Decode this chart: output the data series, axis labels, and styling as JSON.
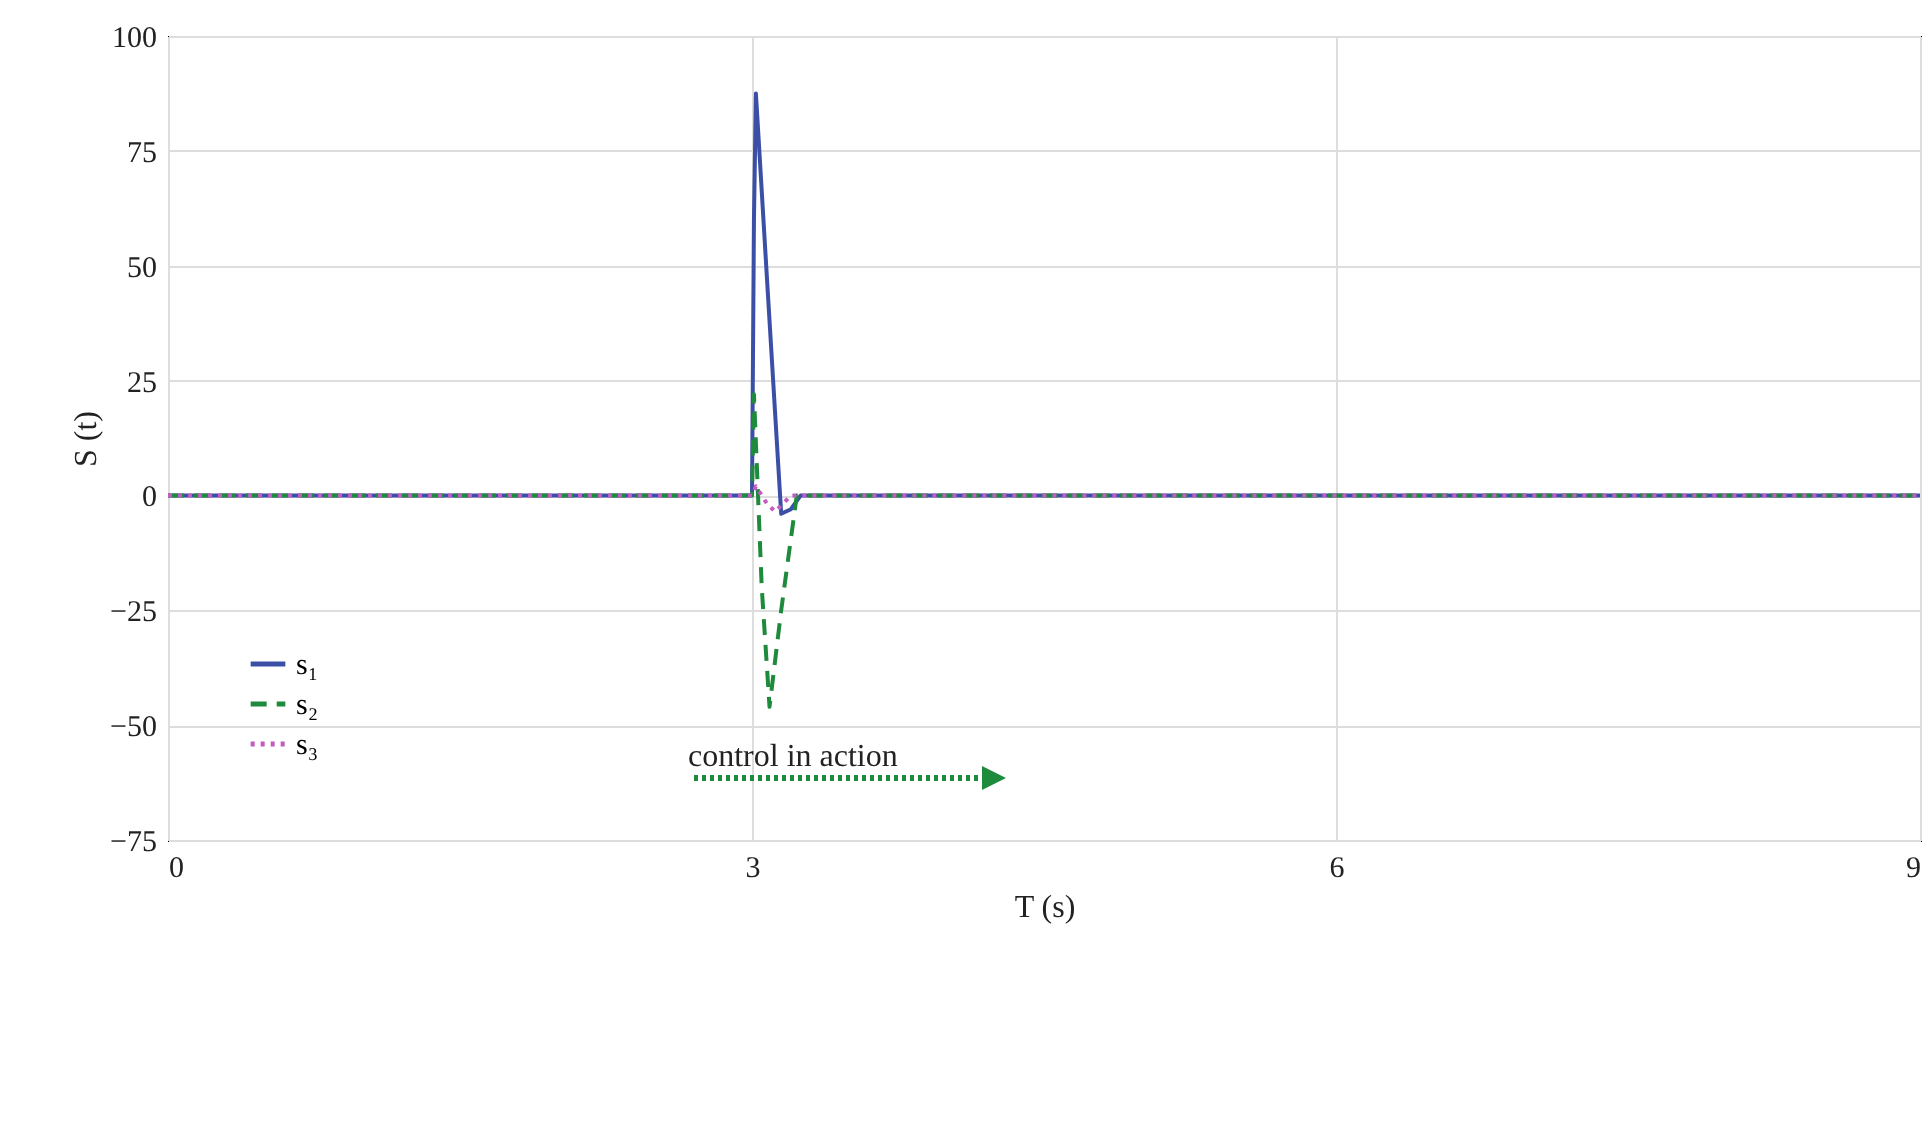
{
  "chart_data": {
    "type": "line",
    "xlabel": "T (s)",
    "ylabel": "S (t)",
    "xlim": [
      0,
      9
    ],
    "xticks": [
      0,
      3,
      6,
      9
    ],
    "ylim": [
      -75,
      100
    ],
    "yticks": [
      -75,
      -50,
      -25,
      0,
      25,
      50,
      75,
      100
    ],
    "grid": true,
    "legend": "bottom left",
    "annotations": [
      "control in action"
    ],
    "series": [
      {
        "name": "s₁",
        "color": "#3a4fa5",
        "line_style": "solid",
        "x": [
          0,
          3.0,
          3.01,
          3.02,
          3.08,
          3.15,
          3.2,
          3.25,
          9
        ],
        "values": [
          0,
          0,
          60,
          87.5,
          45,
          -4,
          -3,
          0,
          0
        ]
      },
      {
        "name": "s₂",
        "color": "#1e8a3c",
        "line_style": "dashed",
        "x": [
          0,
          3.0,
          3.01,
          3.05,
          3.09,
          3.15,
          3.23,
          9
        ],
        "values": [
          0,
          0,
          22,
          -20,
          -46,
          -25,
          0,
          0
        ]
      },
      {
        "name": "s₃",
        "color": "#c25cc2",
        "line_style": "dotted",
        "x": [
          0,
          3.0,
          3.02,
          3.08,
          3.12,
          3.2,
          9
        ],
        "values": [
          0,
          0,
          2,
          -2,
          -3.5,
          0,
          0
        ]
      }
    ]
  }
}
